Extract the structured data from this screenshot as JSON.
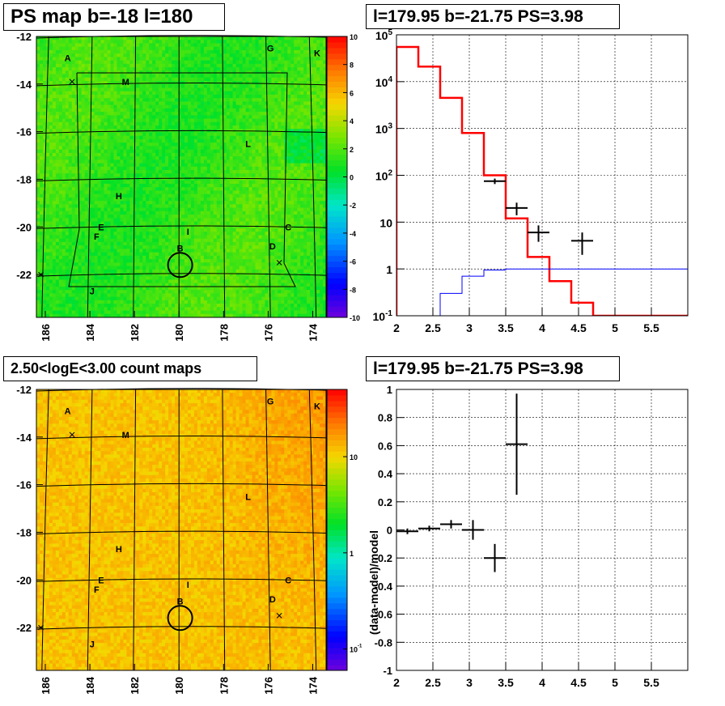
{
  "titles": {
    "map_top": "PS map b=-18 l=180",
    "spec_top": "l=179.95 b=-21.75 PS=3.98",
    "map_bottom": "2.50<logE<3.00 count maps",
    "spec_bottom": "l=179.95 b=-21.75 PS=3.98"
  },
  "chart_data": [
    {
      "type": "heatmap",
      "title": "PS map b=-18 l=180",
      "x_ticks": [
        "186",
        "184",
        "182",
        "180",
        "178",
        "176",
        "174"
      ],
      "y_ticks": [
        "-12",
        "-14",
        "-16",
        "-18",
        "-20",
        "-22"
      ],
      "xlim": [
        186.4,
        173.4
      ],
      "ylim": [
        -23.8,
        -12
      ],
      "colorbar": {
        "ticks": [
          "10",
          "8",
          "6",
          "4",
          "2",
          "0",
          "-2",
          "-4",
          "-6",
          "-8",
          "-10"
        ],
        "range": [
          -10,
          10
        ],
        "scale": "linear"
      },
      "typical_value": 1.5,
      "source_labels": [
        "A",
        "B",
        "C",
        "D",
        "E",
        "F",
        "G",
        "H",
        "I",
        "J",
        "K",
        "L",
        "M"
      ],
      "marked_position": {
        "l": 179.95,
        "b": -21.75
      }
    },
    {
      "type": "line",
      "title": "l=179.95 b=-21.75 PS=3.98",
      "xlim": [
        2,
        6
      ],
      "ylim": [
        0.1,
        100000
      ],
      "log_y": true,
      "grid": true,
      "x_ticks": [
        "2",
        "2.5",
        "3",
        "3.5",
        "4",
        "4.5",
        "5",
        "5.5"
      ],
      "y_ticks": [
        "10^-1",
        "1",
        "10",
        "10^2",
        "10^3",
        "10^4",
        "10^5"
      ],
      "series": [
        {
          "style": "red step",
          "color": "#ff0000",
          "bins": [
            2.0,
            2.3,
            2.6,
            2.9,
            3.2,
            3.5,
            3.8,
            4.1,
            4.4,
            4.7,
            6.0
          ],
          "values": [
            55000,
            21000,
            4500,
            800,
            100,
            12,
            1.8,
            0.55,
            0.19,
            0.1
          ]
        },
        {
          "style": "blue step",
          "color": "#0000ff",
          "bins": [
            2.6,
            2.9,
            3.2,
            3.5,
            6.0
          ],
          "values": [
            0.3,
            0.7,
            0.95,
            1.0
          ]
        },
        {
          "style": "black crosses",
          "color": "#000000",
          "x": [
            3.35,
            3.65,
            3.95,
            4.55
          ],
          "y": [
            75,
            20,
            6,
            4
          ],
          "xerr": [
            0.15,
            0.15,
            0.15,
            0.15
          ],
          "yerr_low": [
            10,
            6,
            2.2,
            2
          ],
          "yerr_high": [
            10,
            6,
            2.5,
            2
          ]
        }
      ]
    },
    {
      "type": "heatmap",
      "title": "2.50<logE<3.00 count maps",
      "x_ticks": [
        "186",
        "184",
        "182",
        "180",
        "178",
        "176",
        "174"
      ],
      "y_ticks": [
        "-12",
        "-14",
        "-16",
        "-18",
        "-20",
        "-22"
      ],
      "xlim": [
        186.4,
        173.4
      ],
      "ylim": [
        -23.8,
        -12
      ],
      "colorbar": {
        "ticks": [
          "10",
          "1",
          "10^-1"
        ],
        "scale": "log"
      },
      "typical_value": 12,
      "source_labels": [
        "A",
        "B",
        "C",
        "D",
        "E",
        "F",
        "G",
        "H",
        "I",
        "J",
        "K",
        "L",
        "M"
      ]
    },
    {
      "type": "scatter",
      "title": "l=179.95 b=-21.75 PS=3.98",
      "ylabel": "(data-model)/model",
      "xlim": [
        2,
        6
      ],
      "ylim": [
        -1,
        1
      ],
      "grid": true,
      "x_ticks": [
        "2",
        "2.5",
        "3",
        "3.5",
        "4",
        "4.5",
        "5",
        "5.5"
      ],
      "y_ticks": [
        "1",
        "0.8",
        "0.6",
        "0.4",
        "0.2",
        "0",
        "-0.2",
        "-0.4",
        "-0.6",
        "-0.8",
        "-1"
      ],
      "points": [
        {
          "x": 2.15,
          "y": -0.01,
          "xerr": 0.15,
          "yerr": 0.02
        },
        {
          "x": 2.45,
          "y": 0.01,
          "xerr": 0.15,
          "yerr": 0.02
        },
        {
          "x": 2.75,
          "y": 0.04,
          "xerr": 0.15,
          "yerr": 0.03
        },
        {
          "x": 3.05,
          "y": 0.0,
          "xerr": 0.15,
          "yerr": 0.07
        },
        {
          "x": 3.35,
          "y": -0.2,
          "xerr": 0.15,
          "yerr": 0.1
        },
        {
          "x": 3.65,
          "y": 0.61,
          "xerr": 0.15,
          "yerr": 0.36
        }
      ]
    }
  ]
}
